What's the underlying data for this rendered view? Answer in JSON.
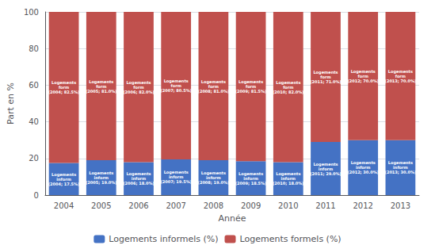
{
  "chart_data": {
    "type": "bar",
    "stacked": true,
    "categories": [
      "2004",
      "2005",
      "2006",
      "2007",
      "2008",
      "2009",
      "2010",
      "2011",
      "2012",
      "2013"
    ],
    "series": [
      {
        "name": "Logements informels (%)",
        "color": "#4472C4",
        "values": [
          17.5,
          19.0,
          18.0,
          19.5,
          19.0,
          18.5,
          18.0,
          29.0,
          30.0,
          30.0
        ],
        "value_labels": [
          "Logements\ninform\n(2004; 17.5%)",
          "Logements\ninform\n(2005; 19.0%)",
          "Logements\ninform\n(2006; 18.0%)",
          "Logements\ninform\n(2007; 19.5%)",
          "Logements\ninform\n(2008; 19.0%)",
          "Logements\ninform\n(2009; 18.5%)",
          "Logements\ninform\n(2010; 18.0%)",
          "Logements\ninform\n(2011; 29.0%)",
          "Logements\ninform\n(2012; 30.0%)",
          "Logements\ninform\n(2013; 30.0%)"
        ]
      },
      {
        "name": "Logements formels (%)",
        "color": "#C0504D",
        "values": [
          82.5,
          81.0,
          82.0,
          80.5,
          81.0,
          81.5,
          82.0,
          71.0,
          70.0,
          70.0
        ],
        "value_labels": [
          "Logements\nform\n(2004; 82.5%)",
          "Logements\nform\n(2005; 81.0%)",
          "Logements\nform\n(2006; 82.0%)",
          "Logements\nform\n(2007; 80.5%)",
          "Logements\nform\n(2008; 81.0%)",
          "Logements\nform\n(2009; 81.5%)",
          "Logements\nform\n(2010; 82.0%)",
          "Logements\nform\n(2011; 71.0%)",
          "Logements\nform\n(2012; 70.0%)",
          "Logements\nform\n(2013; 70.0%)"
        ]
      }
    ],
    "xlabel": "Année",
    "ylabel": "Part en %",
    "ylim": [
      0,
      100
    ],
    "yticks": [
      0,
      20,
      40,
      60,
      80,
      100
    ],
    "grid": true,
    "legend": "bottom",
    "data_labels": true
  }
}
